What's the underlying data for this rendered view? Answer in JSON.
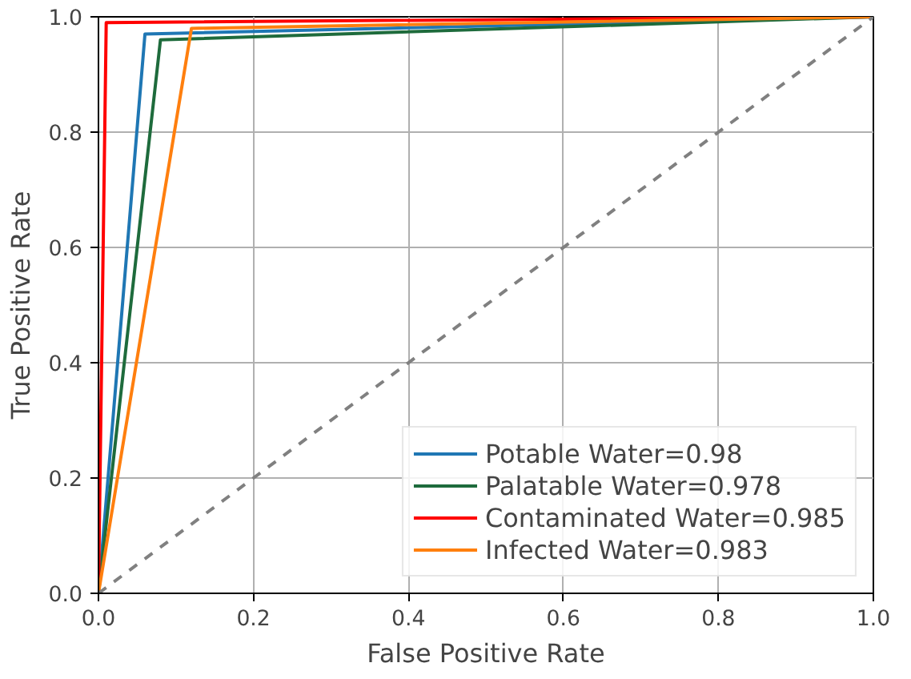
{
  "chart_data": {
    "type": "line",
    "xlabel": "False Positive Rate",
    "ylabel": "True Positive Rate",
    "xlim": [
      0,
      1
    ],
    "ylim": [
      0,
      1
    ],
    "xticks": [
      {
        "value": 0,
        "label": "0.0"
      },
      {
        "value": 0.2,
        "label": "0.2"
      },
      {
        "value": 0.4,
        "label": "0.4"
      },
      {
        "value": 0.6,
        "label": "0.6"
      },
      {
        "value": 0.8,
        "label": "0.8"
      },
      {
        "value": 1,
        "label": "1.0"
      }
    ],
    "yticks": [
      {
        "value": 0,
        "label": "0.0"
      },
      {
        "value": 0.2,
        "label": "0.2"
      },
      {
        "value": 0.4,
        "label": "0.4"
      },
      {
        "value": 0.6,
        "label": "0.6"
      },
      {
        "value": 0.8,
        "label": "0.8"
      },
      {
        "value": 1,
        "label": "1.0"
      }
    ],
    "grid": true,
    "legend": "bottom right",
    "series": [
      {
        "name": "Potable Water=0.98",
        "color": "#1f77b4",
        "x": [
          0,
          0.06,
          1
        ],
        "values": [
          0,
          0.97,
          1
        ]
      },
      {
        "name": "Palatable Water=0.978",
        "color": "#1e6b3c",
        "x": [
          0,
          0.08,
          1
        ],
        "values": [
          0,
          0.96,
          1
        ]
      },
      {
        "name": "Contaminated Water=0.985",
        "color": "#ff0000",
        "x": [
          0,
          0.01,
          1
        ],
        "values": [
          0,
          0.99,
          1
        ]
      },
      {
        "name": "Infected Water=0.983",
        "color": "#ff7f0e",
        "x": [
          0,
          0.12,
          1
        ],
        "values": [
          0,
          0.98,
          1
        ]
      },
      {
        "color": "#808080",
        "x": [
          0,
          1
        ],
        "values": [
          0,
          1
        ],
        "line_style": "dashed"
      }
    ]
  }
}
